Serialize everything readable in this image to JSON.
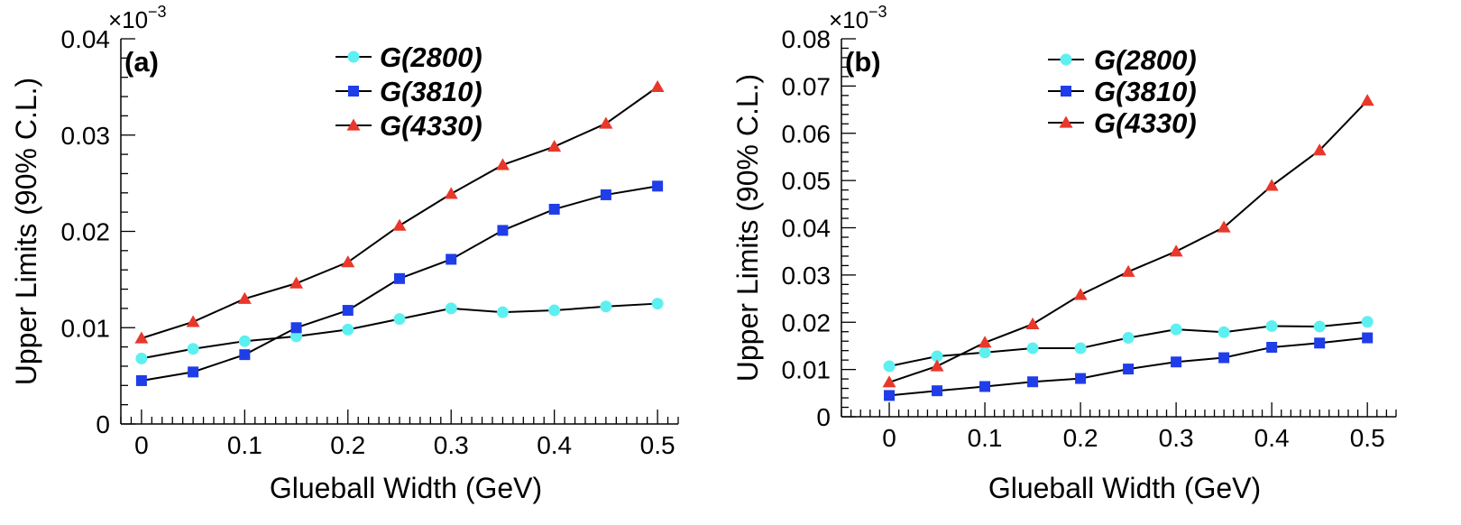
{
  "chart_data": [
    {
      "type": "line",
      "panel_label": "(a)",
      "xlabel": "Glueball Width (GeV)",
      "ylabel": "Upper Limits (90% C.L.)",
      "exponent_label": "×10",
      "exponent_power": "−3",
      "xlim": [
        -0.02,
        0.52
      ],
      "ylim": [
        0,
        0.04
      ],
      "xticks": [
        0,
        0.1,
        0.2,
        0.3,
        0.4,
        0.5
      ],
      "xtick_labels": [
        "0",
        "0.1",
        "0.2",
        "0.3",
        "0.4",
        "0.5"
      ],
      "yticks": [
        0,
        0.01,
        0.02,
        0.03,
        0.04
      ],
      "ytick_labels": [
        "0",
        "0.01",
        "0.02",
        "0.03",
        "0.04"
      ],
      "x": [
        0,
        0.05,
        0.1,
        0.15,
        0.2,
        0.25,
        0.3,
        0.35,
        0.4,
        0.45,
        0.5
      ],
      "legend_position": "top-center",
      "series": [
        {
          "name": "G(2800)",
          "marker": "circle",
          "color": "#5ef0f0",
          "values": [
            0.0068,
            0.0078,
            0.0086,
            0.0091,
            0.0098,
            0.0109,
            0.012,
            0.0116,
            0.0118,
            0.0122,
            0.0125
          ]
        },
        {
          "name": "G(3810)",
          "marker": "square",
          "color": "#1f3de8",
          "values": [
            0.0045,
            0.0054,
            0.0072,
            0.01,
            0.0118,
            0.0151,
            0.0171,
            0.0201,
            0.0223,
            0.0238,
            0.0247
          ]
        },
        {
          "name": "G(4330)",
          "marker": "triangle",
          "color": "#e8382b",
          "values": [
            0.0089,
            0.0106,
            0.013,
            0.0146,
            0.0168,
            0.0206,
            0.0239,
            0.0269,
            0.0288,
            0.0312,
            0.035
          ]
        }
      ]
    },
    {
      "type": "line",
      "panel_label": "(b)",
      "xlabel": "Glueball Width (GeV)",
      "ylabel": "Upper Limits (90% C.L.)",
      "exponent_label": "×10",
      "exponent_power": "−3",
      "xlim": [
        -0.05,
        0.53
      ],
      "ylim": [
        0,
        0.08
      ],
      "xticks": [
        0,
        0.1,
        0.2,
        0.3,
        0.4,
        0.5
      ],
      "xtick_labels": [
        "0",
        "0.1",
        "0.2",
        "0.3",
        "0.4",
        "0.5"
      ],
      "yticks": [
        0,
        0.01,
        0.02,
        0.03,
        0.04,
        0.05,
        0.06,
        0.07,
        0.08
      ],
      "ytick_labels": [
        "0",
        "0.01",
        "0.02",
        "0.03",
        "0.04",
        "0.05",
        "0.06",
        "0.07",
        "0.08"
      ],
      "x": [
        0,
        0.05,
        0.1,
        0.15,
        0.2,
        0.25,
        0.3,
        0.35,
        0.4,
        0.45,
        0.5
      ],
      "legend_position": "top-center",
      "series": [
        {
          "name": "G(2800)",
          "marker": "circle",
          "color": "#5ef0f0",
          "values": [
            0.0107,
            0.0128,
            0.0136,
            0.0145,
            0.0145,
            0.0167,
            0.0185,
            0.0179,
            0.0192,
            0.0191,
            0.0201
          ]
        },
        {
          "name": "G(3810)",
          "marker": "square",
          "color": "#1f3de8",
          "values": [
            0.0045,
            0.0055,
            0.0064,
            0.0074,
            0.0081,
            0.0101,
            0.0116,
            0.0125,
            0.0147,
            0.0156,
            0.0167
          ]
        },
        {
          "name": "G(4330)",
          "marker": "triangle",
          "color": "#e8382b",
          "values": [
            0.0073,
            0.0107,
            0.0157,
            0.0196,
            0.0258,
            0.0307,
            0.035,
            0.0401,
            0.0489,
            0.0564,
            0.0669
          ]
        }
      ]
    }
  ]
}
